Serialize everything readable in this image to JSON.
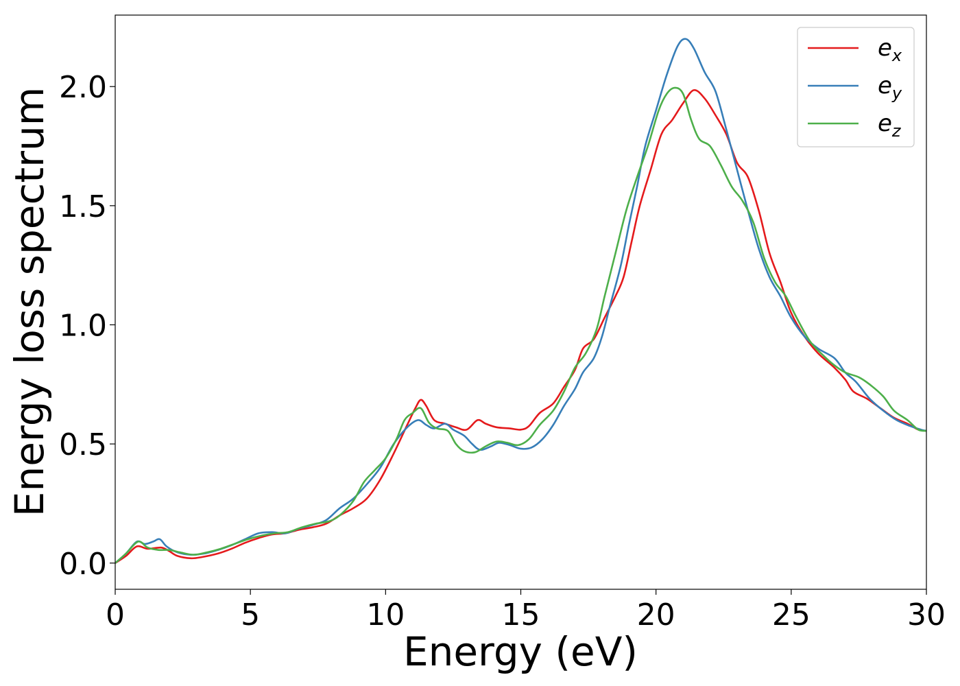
{
  "chart_data": {
    "type": "line",
    "xlabel": "Energy (eV)",
    "ylabel": "Energy loss spectrum",
    "xlim": [
      0,
      30
    ],
    "ylim": [
      -0.11,
      2.3
    ],
    "xticks": [
      0,
      5,
      10,
      15,
      20,
      25,
      30
    ],
    "xtick_labels": [
      "0",
      "5",
      "10",
      "15",
      "20",
      "25",
      "30"
    ],
    "yticks": [
      0.0,
      0.5,
      1.0,
      1.5,
      2.0
    ],
    "ytick_labels": [
      "0.0",
      "0.5",
      "1.0",
      "1.5",
      "2.0"
    ],
    "grid": false,
    "legend_position": "top-right",
    "series": [
      {
        "name": "e_x",
        "label_main": "e",
        "label_sub": "x",
        "color": "#e41a1c",
        "points": [
          [
            0,
            0
          ],
          [
            0.4,
            0.03
          ],
          [
            0.8,
            0.07
          ],
          [
            1.2,
            0.06
          ],
          [
            1.7,
            0.065
          ],
          [
            2.0,
            0.05
          ],
          [
            2.3,
            0.03
          ],
          [
            2.8,
            0.02
          ],
          [
            3.2,
            0.025
          ],
          [
            3.8,
            0.04
          ],
          [
            4.3,
            0.06
          ],
          [
            4.8,
            0.085
          ],
          [
            5.3,
            0.105
          ],
          [
            5.8,
            0.12
          ],
          [
            6.3,
            0.125
          ],
          [
            6.8,
            0.14
          ],
          [
            7.3,
            0.15
          ],
          [
            7.8,
            0.165
          ],
          [
            8.3,
            0.2
          ],
          [
            8.8,
            0.23
          ],
          [
            9.3,
            0.27
          ],
          [
            9.8,
            0.35
          ],
          [
            10.3,
            0.46
          ],
          [
            10.8,
            0.58
          ],
          [
            11.1,
            0.65
          ],
          [
            11.3,
            0.685
          ],
          [
            11.5,
            0.66
          ],
          [
            11.8,
            0.6
          ],
          [
            12.2,
            0.585
          ],
          [
            12.6,
            0.57
          ],
          [
            13.0,
            0.56
          ],
          [
            13.4,
            0.6
          ],
          [
            13.7,
            0.585
          ],
          [
            14.1,
            0.57
          ],
          [
            14.6,
            0.565
          ],
          [
            15.0,
            0.56
          ],
          [
            15.3,
            0.575
          ],
          [
            15.7,
            0.63
          ],
          [
            16.2,
            0.67
          ],
          [
            16.6,
            0.74
          ],
          [
            17.0,
            0.81
          ],
          [
            17.3,
            0.9
          ],
          [
            17.7,
            0.94
          ],
          [
            18.1,
            1.03
          ],
          [
            18.5,
            1.12
          ],
          [
            18.8,
            1.2
          ],
          [
            19.1,
            1.35
          ],
          [
            19.4,
            1.5
          ],
          [
            19.8,
            1.65
          ],
          [
            20.2,
            1.8
          ],
          [
            20.6,
            1.86
          ],
          [
            21.0,
            1.93
          ],
          [
            21.4,
            1.985
          ],
          [
            21.8,
            1.95
          ],
          [
            22.2,
            1.88
          ],
          [
            22.6,
            1.8
          ],
          [
            23.0,
            1.68
          ],
          [
            23.4,
            1.62
          ],
          [
            23.8,
            1.48
          ],
          [
            24.2,
            1.3
          ],
          [
            24.6,
            1.18
          ],
          [
            25.0,
            1.05
          ],
          [
            25.5,
            0.95
          ],
          [
            26.0,
            0.88
          ],
          [
            26.6,
            0.82
          ],
          [
            27.0,
            0.77
          ],
          [
            27.3,
            0.72
          ],
          [
            27.8,
            0.69
          ],
          [
            28.3,
            0.65
          ],
          [
            28.8,
            0.61
          ],
          [
            29.3,
            0.585
          ],
          [
            29.7,
            0.56
          ],
          [
            30,
            0.555
          ]
        ]
      },
      {
        "name": "e_y",
        "label_main": "e",
        "label_sub": "y",
        "color": "#377eb8",
        "points": [
          [
            0,
            0
          ],
          [
            0.4,
            0.04
          ],
          [
            0.8,
            0.09
          ],
          [
            1.1,
            0.08
          ],
          [
            1.4,
            0.09
          ],
          [
            1.65,
            0.1
          ],
          [
            1.9,
            0.07
          ],
          [
            2.3,
            0.045
          ],
          [
            2.8,
            0.035
          ],
          [
            3.3,
            0.04
          ],
          [
            3.8,
            0.055
          ],
          [
            4.3,
            0.075
          ],
          [
            4.8,
            0.1
          ],
          [
            5.3,
            0.125
          ],
          [
            5.8,
            0.13
          ],
          [
            6.3,
            0.125
          ],
          [
            6.8,
            0.145
          ],
          [
            7.3,
            0.16
          ],
          [
            7.8,
            0.18
          ],
          [
            8.3,
            0.23
          ],
          [
            8.8,
            0.27
          ],
          [
            9.3,
            0.33
          ],
          [
            9.8,
            0.4
          ],
          [
            10.3,
            0.5
          ],
          [
            10.8,
            0.57
          ],
          [
            11.2,
            0.6
          ],
          [
            11.5,
            0.58
          ],
          [
            11.8,
            0.565
          ],
          [
            12.2,
            0.585
          ],
          [
            12.5,
            0.56
          ],
          [
            12.9,
            0.535
          ],
          [
            13.2,
            0.5
          ],
          [
            13.5,
            0.475
          ],
          [
            13.9,
            0.49
          ],
          [
            14.2,
            0.505
          ],
          [
            14.6,
            0.495
          ],
          [
            15.0,
            0.48
          ],
          [
            15.4,
            0.485
          ],
          [
            15.8,
            0.52
          ],
          [
            16.2,
            0.58
          ],
          [
            16.6,
            0.66
          ],
          [
            17.0,
            0.73
          ],
          [
            17.3,
            0.8
          ],
          [
            17.7,
            0.86
          ],
          [
            18.0,
            0.95
          ],
          [
            18.3,
            1.08
          ],
          [
            18.7,
            1.25
          ],
          [
            19.0,
            1.42
          ],
          [
            19.3,
            1.58
          ],
          [
            19.6,
            1.75
          ],
          [
            20.0,
            1.9
          ],
          [
            20.4,
            2.05
          ],
          [
            20.8,
            2.17
          ],
          [
            21.1,
            2.2
          ],
          [
            21.4,
            2.16
          ],
          [
            21.8,
            2.06
          ],
          [
            22.2,
            1.98
          ],
          [
            22.6,
            1.82
          ],
          [
            23.0,
            1.65
          ],
          [
            23.4,
            1.48
          ],
          [
            23.8,
            1.32
          ],
          [
            24.2,
            1.2
          ],
          [
            24.6,
            1.12
          ],
          [
            25.0,
            1.03
          ],
          [
            25.5,
            0.95
          ],
          [
            26.0,
            0.9
          ],
          [
            26.6,
            0.86
          ],
          [
            27.0,
            0.8
          ],
          [
            27.4,
            0.76
          ],
          [
            27.9,
            0.69
          ],
          [
            28.4,
            0.64
          ],
          [
            28.9,
            0.6
          ],
          [
            29.4,
            0.575
          ],
          [
            29.8,
            0.56
          ],
          [
            30,
            0.555
          ]
        ]
      },
      {
        "name": "e_z",
        "label_main": "e",
        "label_sub": "z",
        "color": "#4daf4a",
        "points": [
          [
            0,
            0
          ],
          [
            0.4,
            0.04
          ],
          [
            0.85,
            0.09
          ],
          [
            1.2,
            0.065
          ],
          [
            1.6,
            0.055
          ],
          [
            2.0,
            0.055
          ],
          [
            2.4,
            0.045
          ],
          [
            2.9,
            0.035
          ],
          [
            3.4,
            0.045
          ],
          [
            3.9,
            0.06
          ],
          [
            4.4,
            0.08
          ],
          [
            4.9,
            0.1
          ],
          [
            5.4,
            0.115
          ],
          [
            5.9,
            0.125
          ],
          [
            6.4,
            0.13
          ],
          [
            6.9,
            0.15
          ],
          [
            7.4,
            0.165
          ],
          [
            7.9,
            0.175
          ],
          [
            8.3,
            0.2
          ],
          [
            8.8,
            0.26
          ],
          [
            9.2,
            0.34
          ],
          [
            9.6,
            0.39
          ],
          [
            10.0,
            0.44
          ],
          [
            10.4,
            0.52
          ],
          [
            10.7,
            0.6
          ],
          [
            11.0,
            0.63
          ],
          [
            11.3,
            0.65
          ],
          [
            11.6,
            0.59
          ],
          [
            11.9,
            0.565
          ],
          [
            12.3,
            0.555
          ],
          [
            12.6,
            0.5
          ],
          [
            12.9,
            0.47
          ],
          [
            13.3,
            0.465
          ],
          [
            13.7,
            0.49
          ],
          [
            14.1,
            0.51
          ],
          [
            14.5,
            0.505
          ],
          [
            14.9,
            0.495
          ],
          [
            15.3,
            0.52
          ],
          [
            15.7,
            0.58
          ],
          [
            16.2,
            0.64
          ],
          [
            16.6,
            0.72
          ],
          [
            17.0,
            0.82
          ],
          [
            17.4,
            0.88
          ],
          [
            17.8,
            0.98
          ],
          [
            18.1,
            1.12
          ],
          [
            18.5,
            1.3
          ],
          [
            18.9,
            1.48
          ],
          [
            19.3,
            1.62
          ],
          [
            19.7,
            1.75
          ],
          [
            20.1,
            1.9
          ],
          [
            20.4,
            1.97
          ],
          [
            20.7,
            1.995
          ],
          [
            21.0,
            1.97
          ],
          [
            21.3,
            1.86
          ],
          [
            21.6,
            1.78
          ],
          [
            22.0,
            1.75
          ],
          [
            22.4,
            1.67
          ],
          [
            22.8,
            1.58
          ],
          [
            23.2,
            1.52
          ],
          [
            23.6,
            1.43
          ],
          [
            24.0,
            1.28
          ],
          [
            24.4,
            1.18
          ],
          [
            24.8,
            1.12
          ],
          [
            25.2,
            1.03
          ],
          [
            25.7,
            0.93
          ],
          [
            26.2,
            0.87
          ],
          [
            26.6,
            0.83
          ],
          [
            27.0,
            0.8
          ],
          [
            27.5,
            0.78
          ],
          [
            27.9,
            0.75
          ],
          [
            28.4,
            0.7
          ],
          [
            28.8,
            0.64
          ],
          [
            29.3,
            0.6
          ],
          [
            29.7,
            0.56
          ],
          [
            30,
            0.555
          ]
        ]
      }
    ]
  }
}
